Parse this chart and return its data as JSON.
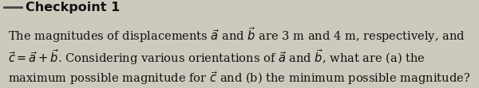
{
  "background_color": "#cdc9bc",
  "header_text": "Checkpoint 1",
  "line1": "The magnitudes of displacements $\\vec{a}$ and $\\vec{b}$ are 3 m and 4 m, respectively, and",
  "line2": "$\\vec{c} = \\vec{a} + \\vec{b}$. Considering various orientations of $\\vec{a}$ and $\\vec{b}$, what are (a) the",
  "line3": "maximum possible magnitude for $\\vec{c}$ and (b) the minimum possible magnitude?",
  "font_size": 10.5,
  "header_font_size": 11.5,
  "text_color": "#111111",
  "header_color": "#111111",
  "line_color": "#444444",
  "fig_width": 6.0,
  "fig_height": 1.11
}
